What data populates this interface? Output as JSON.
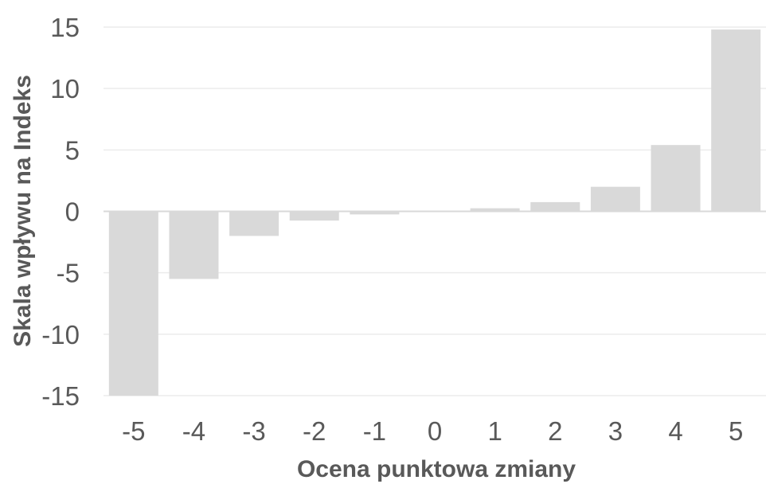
{
  "chart_data": {
    "type": "bar",
    "title": "",
    "xlabel": "Ocena punktowa zmiany",
    "ylabel": "Skala wpływu na Indeks",
    "categories": [
      "-5",
      "-4",
      "-3",
      "-2",
      "-1",
      "0",
      "1",
      "2",
      "3",
      "4",
      "5"
    ],
    "values": [
      -15,
      -5.5,
      -2,
      -0.75,
      -0.25,
      0,
      0.25,
      0.75,
      2,
      5.4,
      14.8
    ],
    "ylim": [
      -15,
      15
    ],
    "yticks": [
      15,
      10,
      5,
      0,
      -5,
      -10,
      -15
    ],
    "ytick_labels": [
      "15",
      "10",
      "5",
      "0",
      "-5",
      "-10",
      "-15"
    ],
    "grid": true,
    "legend": "none",
    "bar_color": "#d9d9d9",
    "text_color": "#595959"
  }
}
